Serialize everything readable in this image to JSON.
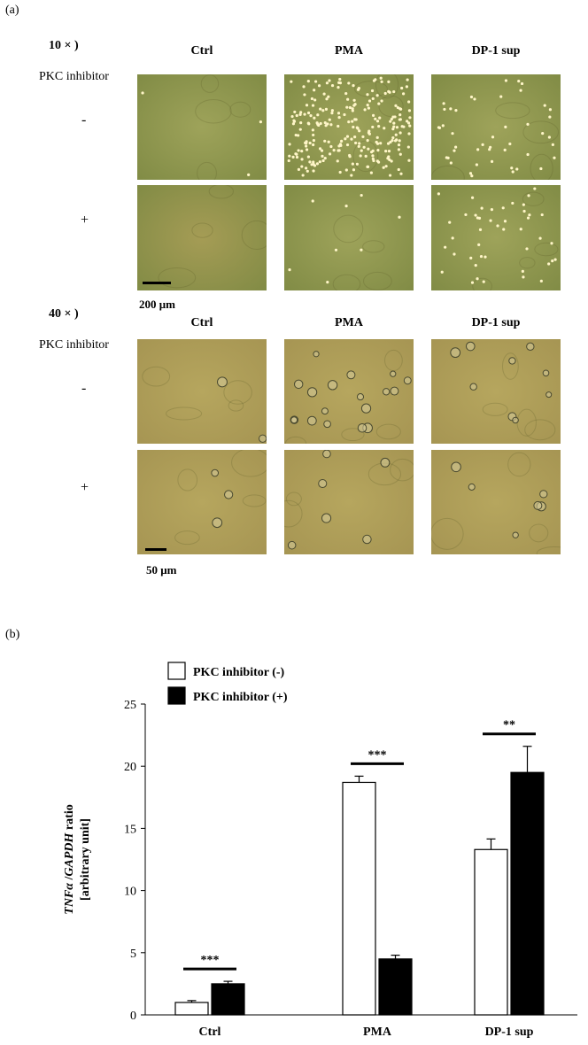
{
  "figure": {
    "panel_a_label": "(a)",
    "panel_b_label": "(b)"
  },
  "micrographs": {
    "mag_10x": "10 × )",
    "mag_40x": "40 × )",
    "row_header": "PKC inhibitor",
    "sign_minus": "-",
    "sign_plus": "+",
    "columns": [
      "Ctrl",
      "PMA",
      "DP-1 sup"
    ],
    "scale_10x": "200 μm",
    "scale_40x": "50 μm",
    "colors": {
      "field_10x": "#9ea35a",
      "field_10x_dark": "#a59c55",
      "field_40x": "#b6a65e",
      "cell_bright": "#fff6c8"
    },
    "cell_density": {
      "10x": {
        "Ctrl": {
          "minus": 3,
          "plus": 0
        },
        "PMA": {
          "minus": 250,
          "plus": 8
        },
        "DP-1 sup": {
          "minus": 45,
          "plus": 45
        }
      },
      "40x": {
        "Ctrl": {
          "minus": 2,
          "plus": 3
        },
        "PMA": {
          "minus": 18,
          "plus": 6
        },
        "DP-1 sup": {
          "minus": 9,
          "plus": 6
        }
      }
    }
  },
  "chart_data": {
    "type": "bar",
    "categories": [
      "Ctrl",
      "PMA",
      "DP-1 sup"
    ],
    "series": [
      {
        "name": "PKC inhibitor (-)",
        "color": "#ffffff",
        "values": [
          1.0,
          18.7,
          13.3
        ],
        "errors": [
          0.15,
          0.5,
          0.85
        ]
      },
      {
        "name": "PKC inhibitor (+)",
        "color": "#000000",
        "values": [
          2.5,
          4.5,
          19.5
        ],
        "errors": [
          0.2,
          0.3,
          2.1
        ]
      }
    ],
    "ylabel_italic_1": "TNFα",
    "ylabel_sep": " /",
    "ylabel_italic_2": "GAPDH",
    "ylabel_rest": " ratio",
    "ylabel_line2": "[arbitrary unit]",
    "ylim": [
      0,
      25
    ],
    "yticks": [
      0,
      5,
      10,
      15,
      20,
      25
    ],
    "significance": [
      "***",
      "***",
      "**"
    ],
    "legend_placement": "top-left"
  }
}
